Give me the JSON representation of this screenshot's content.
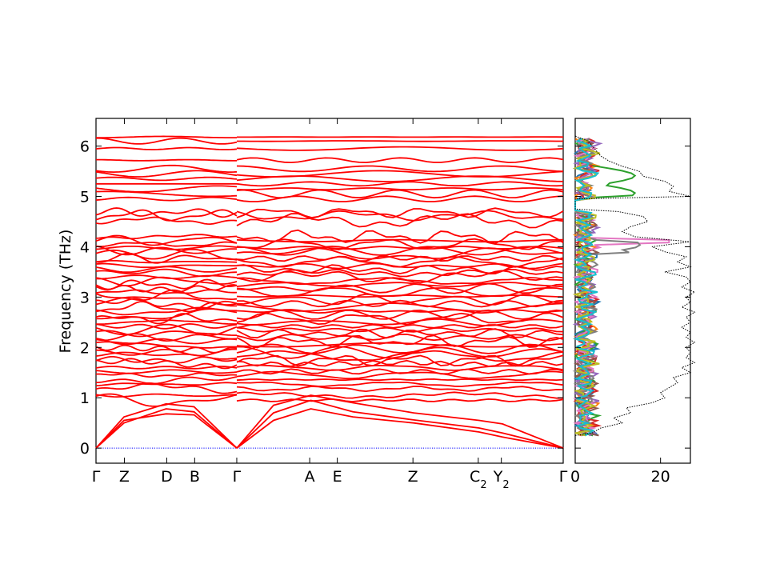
{
  "chart_data": [
    {
      "type": "line",
      "name": "band-structure",
      "ylabel": "Frequency (THz)",
      "xlabel": "",
      "ylim": [
        -0.3,
        6.55
      ],
      "yticks": [
        0,
        1,
        2,
        3,
        4,
        5,
        6
      ],
      "kpoints": [
        {
          "label": "Γ",
          "sub": "",
          "x": 0.0
        },
        {
          "label": "Z",
          "sub": "",
          "x": 0.0607
        },
        {
          "label": "D",
          "sub": "",
          "x": 0.1514
        },
        {
          "label": "B",
          "sub": "",
          "x": 0.2112
        },
        {
          "label": "Γ",
          "sub": "",
          "x": 0.3013
        },
        {
          "label": "A",
          "sub": "",
          "x": 0.4574
        },
        {
          "label": "E",
          "sub": "",
          "x": 0.5165
        },
        {
          "label": "Z",
          "sub": "",
          "x": 0.6784
        },
        {
          "label": "C",
          "sub": "2",
          "x": 0.8182
        },
        {
          "label": "Y",
          "sub": "2",
          "x": 0.8676
        },
        {
          "label": "Γ",
          "sub": "",
          "x": 1.0
        }
      ],
      "segments_discontinuity_at": 0.3013,
      "zero_line": {
        "y": 0,
        "color": "#0000ff",
        "style": "dotted"
      },
      "band_color": "#ff0000",
      "acoustic": [
        [
          [
            0,
            0
          ],
          [
            0.06,
            0.55
          ],
          [
            0.15,
            0.68
          ],
          [
            0.21,
            0.66
          ],
          [
            0.3013,
            0
          ]
        ],
        [
          [
            0,
            0
          ],
          [
            0.06,
            0.5
          ],
          [
            0.15,
            0.78
          ],
          [
            0.21,
            0.72
          ],
          [
            0.3013,
            0
          ]
        ],
        [
          [
            0,
            0
          ],
          [
            0.06,
            0.62
          ],
          [
            0.15,
            0.88
          ],
          [
            0.21,
            0.82
          ],
          [
            0.3013,
            0
          ]
        ],
        [
          [
            0.3013,
            0
          ],
          [
            0.38,
            0.7
          ],
          [
            0.46,
            0.95
          ],
          [
            0.55,
            0.72
          ],
          [
            0.68,
            0.56
          ],
          [
            0.82,
            0.4
          ],
          [
            0.87,
            0.3
          ],
          [
            1.0,
            0
          ]
        ],
        [
          [
            0.3013,
            0
          ],
          [
            0.38,
            0.55
          ],
          [
            0.46,
            0.78
          ],
          [
            0.55,
            0.62
          ],
          [
            0.68,
            0.5
          ],
          [
            0.82,
            0.32
          ],
          [
            0.87,
            0.22
          ],
          [
            1.0,
            0
          ]
        ],
        [
          [
            0.3013,
            0
          ],
          [
            0.38,
            0.85
          ],
          [
            0.46,
            1.05
          ],
          [
            0.55,
            0.9
          ],
          [
            0.68,
            0.7
          ],
          [
            0.82,
            0.55
          ],
          [
            0.87,
            0.48
          ],
          [
            1.0,
            0
          ]
        ]
      ],
      "optical_levels": [
        0.95,
        1.05,
        1.18,
        1.27,
        1.36,
        1.45,
        1.52,
        1.6,
        1.68,
        1.75,
        1.83,
        1.9,
        1.97,
        2.05,
        2.12,
        2.2,
        2.28,
        2.35,
        2.42,
        2.5,
        2.57,
        2.65,
        2.72,
        2.8,
        2.87,
        2.95,
        3.02,
        3.1,
        3.17,
        3.25,
        3.32,
        3.4,
        3.48,
        3.55,
        3.62,
        3.7,
        3.77,
        3.85,
        3.92,
        3.98,
        4.05,
        4.12,
        4.2,
        4.52,
        4.62,
        4.68,
        4.95,
        5.05,
        5.15,
        5.25,
        5.35,
        5.45,
        5.55,
        5.72,
        5.95,
        6.1,
        6.18
      ]
    },
    {
      "type": "line",
      "name": "density-of-states",
      "xlim": [
        0,
        27
      ],
      "xticks": [
        0,
        20
      ],
      "ylim": [
        -0.3,
        6.55
      ],
      "total_dos_color": "#000000",
      "total_dos": [
        [
          0.25,
          0
        ],
        [
          0.3,
          4
        ],
        [
          0.4,
          6
        ],
        [
          0.5,
          11
        ],
        [
          0.6,
          9
        ],
        [
          0.7,
          13
        ],
        [
          0.8,
          12
        ],
        [
          0.9,
          18
        ],
        [
          1.0,
          21
        ],
        [
          1.1,
          20
        ],
        [
          1.2,
          22
        ],
        [
          1.3,
          24
        ],
        [
          1.4,
          23
        ],
        [
          1.5,
          27
        ],
        [
          1.6,
          25
        ],
        [
          1.7,
          28
        ],
        [
          1.8,
          26
        ],
        [
          1.9,
          27
        ],
        [
          2.0,
          26
        ],
        [
          2.1,
          28
        ],
        [
          2.2,
          26
        ],
        [
          2.3,
          27
        ],
        [
          2.4,
          25
        ],
        [
          2.5,
          27
        ],
        [
          2.6,
          26
        ],
        [
          2.7,
          28
        ],
        [
          2.8,
          25
        ],
        [
          2.9,
          27
        ],
        [
          3.0,
          26
        ],
        [
          3.1,
          28
        ],
        [
          3.2,
          25
        ],
        [
          3.3,
          27
        ],
        [
          3.4,
          26
        ],
        [
          3.5,
          21
        ],
        [
          3.6,
          27
        ],
        [
          3.7,
          24
        ],
        [
          3.8,
          26
        ],
        [
          3.9,
          21
        ],
        [
          4.0,
          18
        ],
        [
          4.1,
          27
        ],
        [
          4.2,
          14
        ],
        [
          4.3,
          11
        ],
        [
          4.4,
          13
        ],
        [
          4.5,
          17
        ],
        [
          4.6,
          16
        ],
        [
          4.7,
          10
        ],
        [
          4.75,
          0
        ],
        [
          4.95,
          0
        ],
        [
          5.0,
          27
        ],
        [
          5.1,
          22
        ],
        [
          5.2,
          23
        ],
        [
          5.3,
          21
        ],
        [
          5.4,
          16
        ],
        [
          5.5,
          15
        ],
        [
          5.6,
          11
        ],
        [
          5.7,
          8
        ],
        [
          5.8,
          6
        ],
        [
          5.9,
          5
        ],
        [
          6.0,
          4
        ],
        [
          6.1,
          3
        ],
        [
          6.2,
          0
        ]
      ],
      "partial_colors": [
        "#1f77b4",
        "#ff7f0e",
        "#2ca02c",
        "#d62728",
        "#9467bd",
        "#8c564b",
        "#e377c2",
        "#7f7f7f",
        "#bcbd22",
        "#17becf"
      ]
    }
  ]
}
